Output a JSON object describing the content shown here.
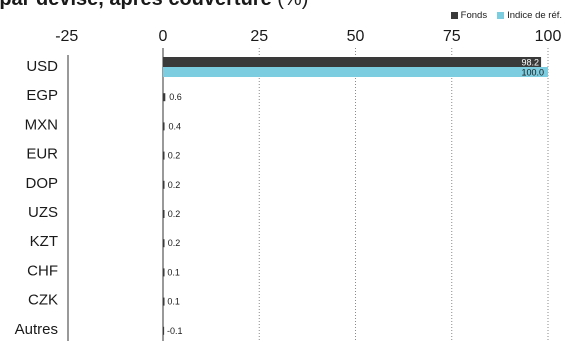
{
  "title": {
    "bold_part": "r par devise, après couverture",
    "regular_part": " (%)"
  },
  "legend": [
    {
      "name": "Fonds",
      "color": "#3a3a3a"
    },
    {
      "name": "Indice de réf.",
      "color": "#7ccde0"
    }
  ],
  "chart_data": {
    "type": "bar",
    "orientation": "horizontal",
    "xlim": [
      -25,
      100
    ],
    "xticks": [
      -25,
      0,
      25,
      50,
      75,
      100
    ],
    "categories": [
      "USD",
      "EGP",
      "MXN",
      "EUR",
      "DOP",
      "UZS",
      "KZT",
      "CHF",
      "CZK",
      "Autres"
    ],
    "series": [
      {
        "name": "Fonds",
        "color": "#3a3a3a",
        "values": [
          98.2,
          0.6,
          0.4,
          0.2,
          0.2,
          0.2,
          0.2,
          0.1,
          0.1,
          -0.1
        ]
      },
      {
        "name": "Indice de réf.",
        "color": "#7ccde0",
        "values": [
          100.0,
          null,
          null,
          null,
          null,
          null,
          null,
          null,
          null,
          null
        ]
      }
    ],
    "grid": true,
    "legend_position": "top-right"
  }
}
